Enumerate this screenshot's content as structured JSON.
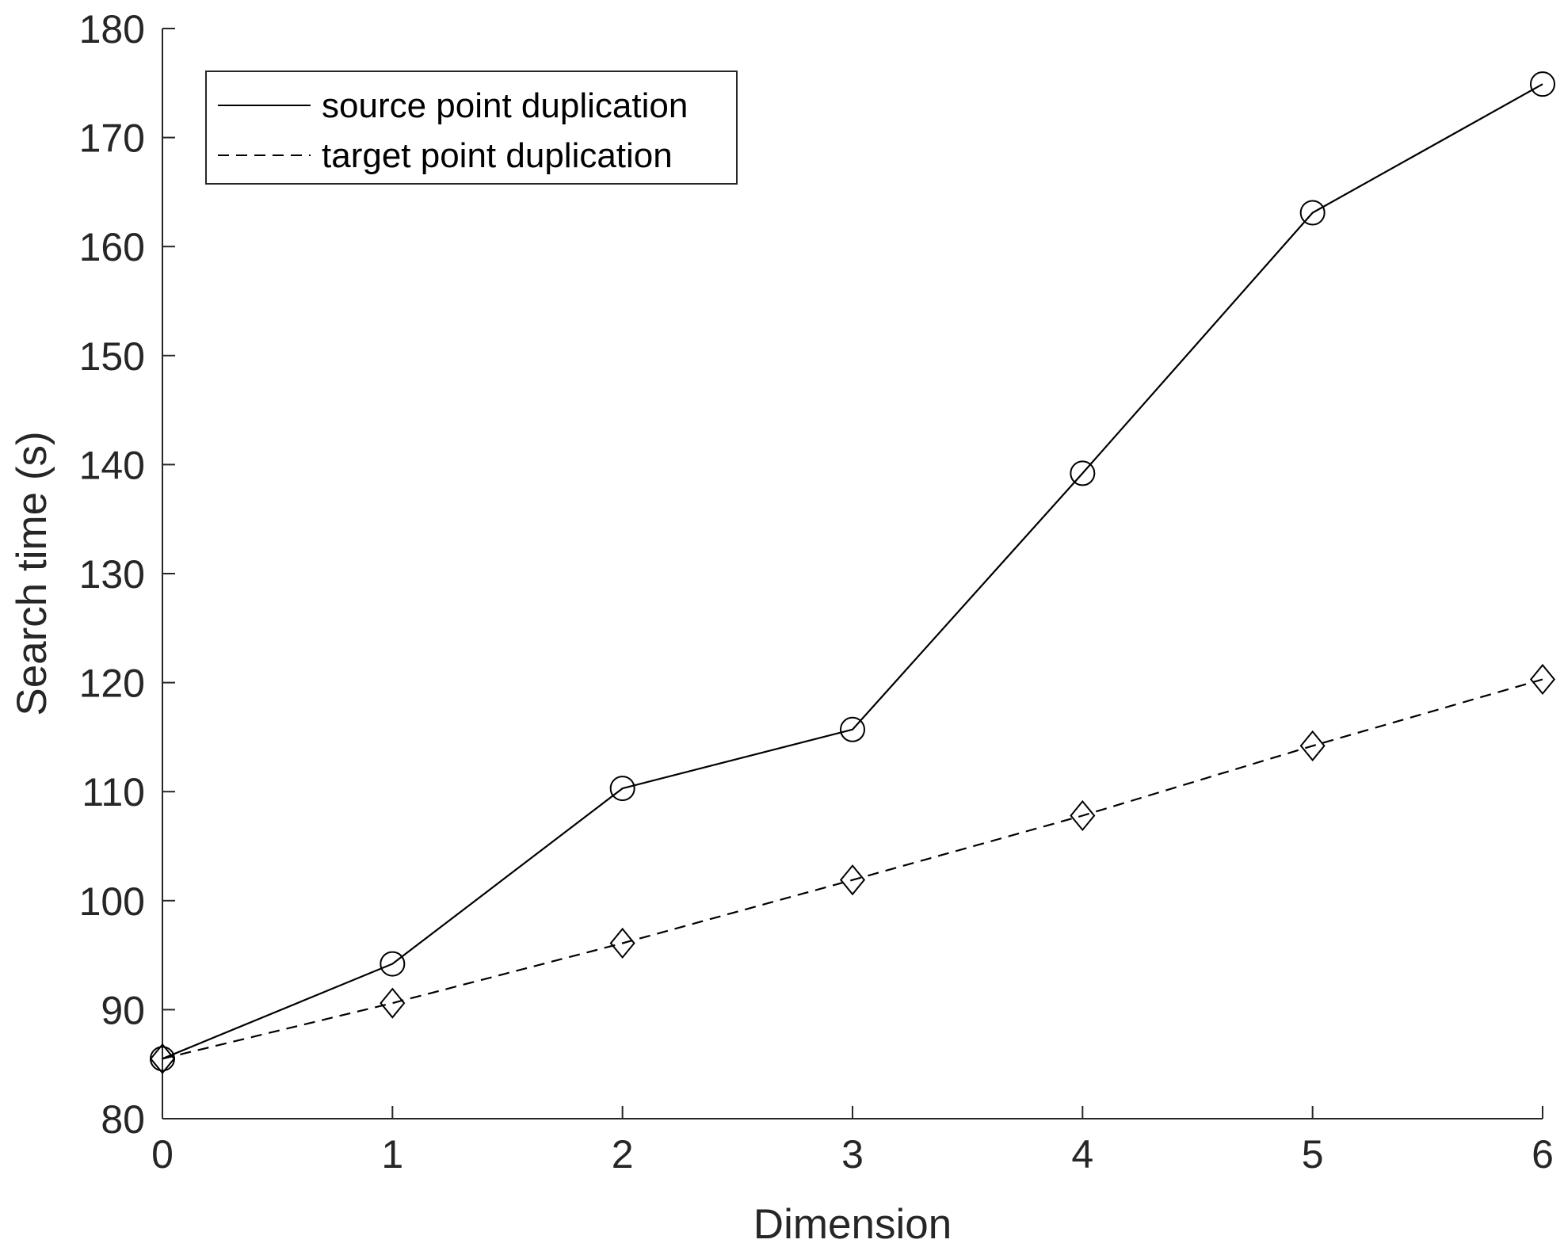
{
  "chart_data": {
    "type": "line",
    "title": "",
    "xlabel": "Dimension",
    "ylabel": "Search time (s)",
    "x": [
      0,
      1,
      2,
      3,
      4,
      5,
      6
    ],
    "xlim": [
      0,
      6
    ],
    "ylim": [
      80,
      180
    ],
    "xticks": [
      "0",
      "1",
      "2",
      "3",
      "4",
      "5",
      "6"
    ],
    "yticks": [
      "80",
      "90",
      "100",
      "110",
      "120",
      "130",
      "140",
      "150",
      "160",
      "170",
      "180"
    ],
    "grid": false,
    "legend_position": "top-left",
    "series": [
      {
        "name": "source point duplication",
        "values": [
          85.5,
          94.2,
          110.3,
          115.7,
          139.2,
          163.1,
          174.9
        ],
        "line_style": "solid",
        "marker": "circle",
        "color": "#000000"
      },
      {
        "name": "target point duplication",
        "values": [
          85.5,
          90.6,
          96.1,
          101.9,
          107.8,
          114.2,
          120.3
        ],
        "line_style": "dashed",
        "marker": "diamond",
        "color": "#000000"
      }
    ]
  }
}
